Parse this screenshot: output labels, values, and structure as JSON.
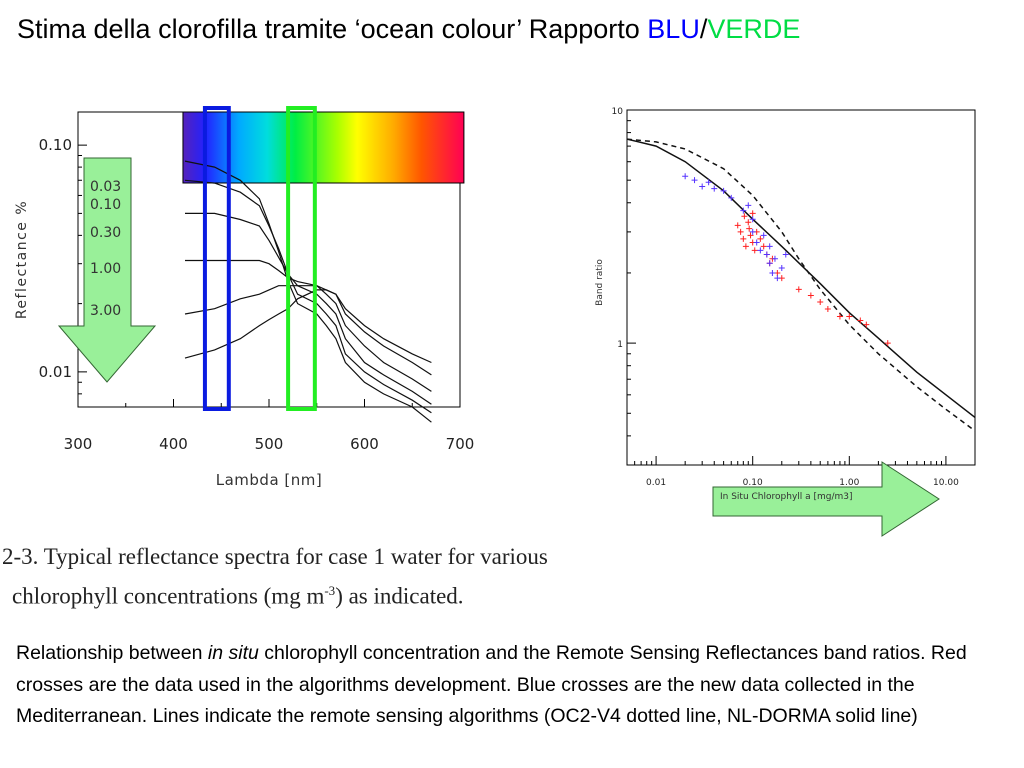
{
  "title": {
    "prefix": "Stima della clorofilla tramite ‘ocean colour’ Rapporto ",
    "blue_word": "BLU",
    "separator": "/",
    "green_word": "VERDE",
    "blue_color": "#0000ff",
    "green_color": "#00dd44"
  },
  "caption": {
    "line1": "2-3. Typical reflectance spectra for case 1 water for various",
    "line2_a": "chlorophyll concentrations (mg m",
    "line2_sup": "-3",
    "line2_b": ") as indicated."
  },
  "description": {
    "part1": "Relationship between ",
    "italic": "in situ",
    "part2": " chlorophyll concentration and the Remote Sensing Reflectances band ratios. Red crosses are the data used in the algorithms development. Blue crosses are the new data collected in the Mediterranean. Lines indicate the remote sensing algorithms (OC2-V4 dotted line, NL-DORMA solid line)"
  },
  "chart_data": [
    {
      "type": "line",
      "ylabel": "Reflectance  %",
      "xlabel": "Lambda [nm]",
      "xlim": [
        300,
        700
      ],
      "ylim": [
        0.007,
        0.14
      ],
      "y_scale": "log",
      "x_ticks": [
        "300",
        "400",
        "500",
        "600",
        "700"
      ],
      "y_ticks": [
        "0.10",
        "0.01"
      ],
      "spectral_band": {
        "from": 412,
        "to": 702
      },
      "blue_band": [
        435,
        460
      ],
      "green_band": [
        520,
        548
      ],
      "arrow_color": "#99f099",
      "x": [
        412,
        443,
        470,
        490,
        500,
        510,
        520,
        530,
        550,
        560,
        570,
        580,
        600,
        620,
        650,
        670
      ],
      "series": [
        {
          "name": "0.03",
          "values": [
            0.085,
            0.08,
            0.07,
            0.058,
            0.045,
            0.034,
            0.025,
            0.02,
            0.018,
            0.016,
            0.014,
            0.011,
            0.009,
            0.008,
            0.007,
            0.006
          ]
        },
        {
          "name": "0.10",
          "values": [
            0.07,
            0.068,
            0.062,
            0.054,
            0.044,
            0.035,
            0.027,
            0.022,
            0.02,
            0.018,
            0.016,
            0.012,
            0.01,
            0.0088,
            0.0075,
            0.0066
          ]
        },
        {
          "name": "0.30",
          "values": [
            0.05,
            0.05,
            0.047,
            0.044,
            0.038,
            0.032,
            0.027,
            0.024,
            0.022,
            0.02,
            0.018,
            0.014,
            0.011,
            0.0097,
            0.0082,
            0.0072
          ]
        },
        {
          "name": "1.00",
          "values": [
            0.031,
            0.031,
            0.031,
            0.031,
            0.03,
            0.028,
            0.026,
            0.025,
            0.024,
            0.022,
            0.02,
            0.016,
            0.013,
            0.011,
            0.0093,
            0.0082
          ]
        },
        {
          "name": "3.00",
          "values": [
            0.018,
            0.019,
            0.021,
            0.022,
            0.023,
            0.024,
            0.024,
            0.024,
            0.024,
            0.023,
            0.022,
            0.018,
            0.015,
            0.013,
            0.011,
            0.0097
          ]
        },
        {
          "name": "",
          "values": [
            0.0115,
            0.0125,
            0.014,
            0.016,
            0.017,
            0.018,
            0.019,
            0.021,
            0.023,
            0.023,
            0.022,
            0.019,
            0.016,
            0.014,
            0.012,
            0.011
          ]
        }
      ]
    },
    {
      "type": "scatter",
      "ylabel": "Band ratio",
      "xlabel": "In Situ Chlorophyll a [mg/m3]",
      "x_scale": "log",
      "y_scale": "log",
      "xlim": [
        0.005,
        20
      ],
      "ylim": [
        0.3,
        10
      ],
      "x_ticks": [
        "0.01",
        "0.10",
        "1.00",
        "10.00"
      ],
      "y_ticks": [
        "10",
        "1"
      ],
      "arrow_color": "#99f099",
      "series": [
        {
          "name": "OC2-V4",
          "style": "dashed",
          "x": [
            0.005,
            0.01,
            0.02,
            0.05,
            0.1,
            0.2,
            0.3,
            0.5,
            1,
            2,
            5,
            10,
            20
          ],
          "y": [
            7.5,
            7.3,
            6.8,
            5.6,
            4.3,
            3.0,
            2.3,
            1.7,
            1.2,
            0.9,
            0.65,
            0.52,
            0.42
          ]
        },
        {
          "name": "NL-DORMA",
          "style": "solid",
          "x": [
            0.005,
            0.01,
            0.02,
            0.05,
            0.1,
            0.2,
            0.5,
            1,
            2,
            5,
            10,
            20
          ],
          "y": [
            7.5,
            7.0,
            6.0,
            4.5,
            3.4,
            2.6,
            1.8,
            1.35,
            1.05,
            0.75,
            0.6,
            0.48
          ]
        },
        {
          "name": "Red crosses",
          "color": "#ff2020",
          "x": [
            0.07,
            0.075,
            0.08,
            0.082,
            0.085,
            0.09,
            0.092,
            0.095,
            0.1,
            0.1,
            0.105,
            0.11,
            0.12,
            0.13,
            0.14,
            0.15,
            0.16,
            0.18,
            0.2,
            0.3,
            0.4,
            0.5,
            0.6,
            0.8,
            1.0,
            1.3,
            1.5,
            2.5
          ],
          "y": [
            3.2,
            3.0,
            2.8,
            3.5,
            2.6,
            3.3,
            3.1,
            2.9,
            2.7,
            3.6,
            2.5,
            3.0,
            2.8,
            2.6,
            2.4,
            2.2,
            2.3,
            2.0,
            1.9,
            1.7,
            1.6,
            1.5,
            1.4,
            1.3,
            1.3,
            1.25,
            1.2,
            1.0
          ]
        },
        {
          "name": "Blue crosses",
          "color": "#5533ff",
          "x": [
            0.02,
            0.025,
            0.03,
            0.035,
            0.04,
            0.05,
            0.06,
            0.08,
            0.09,
            0.1,
            0.1,
            0.11,
            0.12,
            0.13,
            0.14,
            0.15,
            0.15,
            0.16,
            0.17,
            0.18,
            0.2,
            0.22
          ],
          "y": [
            5.2,
            5.0,
            4.7,
            4.9,
            4.6,
            4.5,
            4.2,
            3.7,
            3.9,
            3.4,
            3.0,
            2.7,
            2.5,
            2.9,
            2.4,
            2.2,
            2.6,
            2.0,
            2.3,
            1.9,
            2.1,
            2.4
          ]
        }
      ]
    }
  ]
}
